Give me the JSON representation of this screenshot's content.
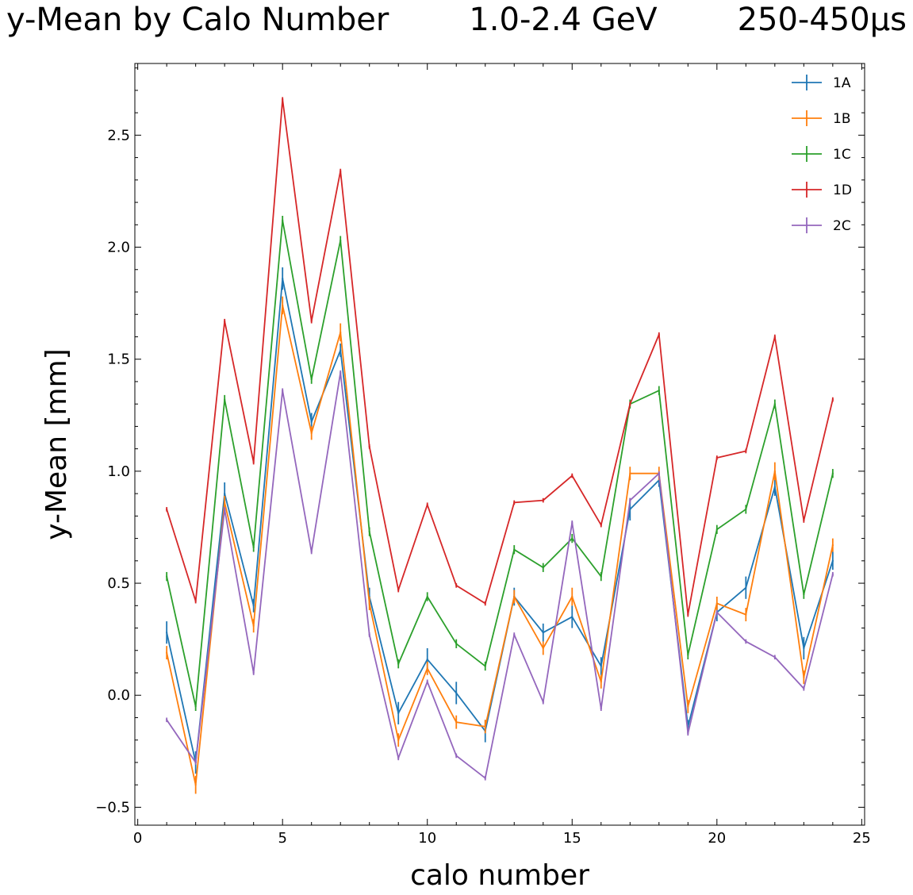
{
  "chart_data": {
    "type": "line",
    "title_parts": [
      "y-Mean by Calo Number",
      "1.0-2.4 GeV",
      "250-450µs"
    ],
    "xlabel": "calo number",
    "ylabel": "y-Mean [mm]",
    "xlim": [
      -0.1,
      25.1
    ],
    "ylim": [
      -0.58,
      2.82
    ],
    "xticks": [
      0,
      5,
      10,
      15,
      20,
      25
    ],
    "yticks": [
      -0.5,
      0.0,
      0.5,
      1.0,
      1.5,
      2.0,
      2.5
    ],
    "ytick_labels": [
      "−0.5",
      "0.0",
      "0.5",
      "1.0",
      "1.5",
      "2.0",
      "2.5"
    ],
    "grid": false,
    "legend_position": "top-right",
    "x": [
      1,
      2,
      3,
      4,
      5,
      6,
      7,
      8,
      9,
      10,
      11,
      12,
      13,
      14,
      15,
      16,
      17,
      18,
      19,
      20,
      21,
      22,
      23,
      24
    ],
    "series": [
      {
        "name": "1A",
        "color": "#1f77b4",
        "values": [
          0.28,
          -0.3,
          0.9,
          0.4,
          1.86,
          1.22,
          1.54,
          0.44,
          -0.08,
          0.16,
          0.01,
          -0.16,
          0.44,
          0.28,
          0.35,
          0.13,
          0.83,
          0.96,
          -0.14,
          0.37,
          0.48,
          0.93,
          0.21,
          0.6
        ],
        "errors": [
          0.05,
          0.05,
          0.05,
          0.03,
          0.05,
          0.04,
          0.03,
          0.04,
          0.05,
          0.05,
          0.05,
          0.05,
          0.04,
          0.04,
          0.05,
          0.04,
          0.05,
          0.03,
          0.03,
          0.04,
          0.05,
          0.04,
          0.05,
          0.04
        ]
      },
      {
        "name": "1B",
        "color": "#ff7f0e",
        "values": [
          0.19,
          -0.4,
          0.86,
          0.31,
          1.74,
          1.17,
          1.62,
          0.41,
          -0.2,
          0.12,
          -0.12,
          -0.14,
          0.44,
          0.21,
          0.44,
          0.06,
          0.99,
          0.99,
          -0.05,
          0.41,
          0.36,
          1.0,
          0.08,
          0.67
        ],
        "errors": [
          0.03,
          0.04,
          0.03,
          0.03,
          0.04,
          0.03,
          0.04,
          0.03,
          0.03,
          0.03,
          0.03,
          0.03,
          0.03,
          0.03,
          0.04,
          0.03,
          0.03,
          0.03,
          0.03,
          0.03,
          0.03,
          0.04,
          0.03,
          0.03
        ]
      },
      {
        "name": "1C",
        "color": "#2ca02c",
        "values": [
          0.53,
          -0.05,
          1.32,
          0.66,
          2.12,
          1.41,
          2.03,
          0.73,
          0.14,
          0.44,
          0.23,
          0.13,
          0.65,
          0.57,
          0.7,
          0.53,
          1.3,
          1.36,
          0.18,
          0.74,
          0.83,
          1.3,
          0.45,
          0.99
        ],
        "errors": [
          0.02,
          0.02,
          0.02,
          0.02,
          0.02,
          0.02,
          0.02,
          0.02,
          0.02,
          0.02,
          0.02,
          0.02,
          0.02,
          0.02,
          0.02,
          0.02,
          0.02,
          0.02,
          0.02,
          0.02,
          0.02,
          0.02,
          0.02,
          0.02
        ]
      },
      {
        "name": "1D",
        "color": "#d62728",
        "values": [
          0.83,
          0.42,
          1.67,
          1.04,
          2.66,
          1.67,
          2.34,
          1.11,
          0.47,
          0.85,
          0.49,
          0.41,
          0.86,
          0.87,
          0.98,
          0.76,
          1.3,
          1.61,
          0.36,
          1.06,
          1.09,
          1.6,
          0.78,
          1.32
        ],
        "errors": [
          0.01,
          0.01,
          0.01,
          0.01,
          0.01,
          0.01,
          0.01,
          0.01,
          0.01,
          0.01,
          0.01,
          0.01,
          0.01,
          0.01,
          0.01,
          0.01,
          0.01,
          0.01,
          0.01,
          0.01,
          0.01,
          0.01,
          0.01,
          0.01
        ]
      },
      {
        "name": "2C",
        "color": "#9467bd",
        "values": [
          -0.11,
          -0.3,
          0.83,
          0.1,
          1.36,
          0.64,
          1.44,
          0.27,
          -0.28,
          0.06,
          -0.27,
          -0.37,
          0.27,
          -0.03,
          0.77,
          -0.06,
          0.87,
          0.99,
          -0.17,
          0.37,
          0.24,
          0.17,
          0.03,
          0.54
        ],
        "errors": [
          0.01,
          0.01,
          0.01,
          0.01,
          0.01,
          0.01,
          0.01,
          0.01,
          0.01,
          0.01,
          0.01,
          0.01,
          0.01,
          0.01,
          0.01,
          0.01,
          0.01,
          0.01,
          0.01,
          0.01,
          0.01,
          0.01,
          0.01,
          0.01
        ]
      }
    ]
  }
}
